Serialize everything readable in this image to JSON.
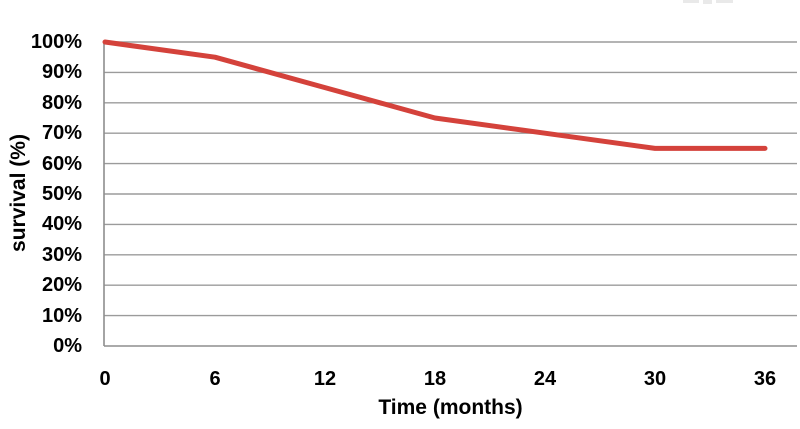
{
  "figure": {
    "background": "#ffffff",
    "text_color": "#000000"
  },
  "chart_data": {
    "type": "line",
    "title": "",
    "xlabel": "Time (months)",
    "ylabel": "survival (%)",
    "x": [
      0,
      6,
      12,
      18,
      24,
      30,
      36
    ],
    "x_tick_labels": [
      "0",
      "6",
      "12",
      "18",
      "24",
      "30",
      "36"
    ],
    "series": [
      {
        "name": "survival",
        "values": [
          100,
          95,
          85,
          75,
          70,
          65,
          65
        ],
        "color": "#d4423b",
        "line_width": 5
      }
    ],
    "y_ticks": [
      0,
      10,
      20,
      30,
      40,
      50,
      60,
      70,
      80,
      90,
      100
    ],
    "y_tick_labels": [
      "0%",
      "10%",
      "20%",
      "30%",
      "40%",
      "50%",
      "60%",
      "70%",
      "80%",
      "90%",
      "100%"
    ],
    "ylim": [
      0,
      100
    ],
    "xlim": [
      0,
      36
    ],
    "grid": "horizontal",
    "legend": "none",
    "gridline_color": "#9b9b9b",
    "axis_color": "#8d8d8d"
  }
}
